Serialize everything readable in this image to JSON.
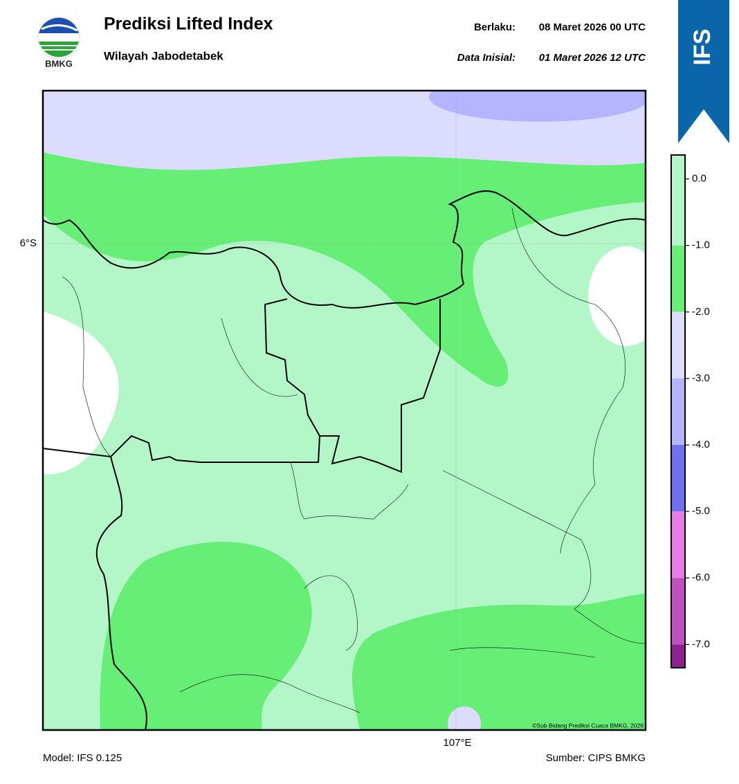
{
  "header": {
    "logo_text": "BMKG",
    "title": "Prediksi Lifted Index",
    "subtitle": "Wilayah Jabodetabek",
    "valid_label": "Berlaku:",
    "valid_time": "08 Maret 2026 00 UTC",
    "init_label": "Data Inisial:",
    "init_time": "01 Maret 2026 12 UTC",
    "model_badge": "IFS"
  },
  "map": {
    "lat_label": "6°S",
    "lon_label": "107°E",
    "copyright": "©Sub Bidang Prediksi Cuaca BMKG, 2026"
  },
  "legend": {
    "range": [
      -7.35,
      0.36
    ],
    "bands": [
      {
        "from": -1.0,
        "to": 0.36,
        "color": "#b3f7c8"
      },
      {
        "from": -2.0,
        "to": -1.0,
        "color": "#66ee77"
      },
      {
        "from": -3.0,
        "to": -2.0,
        "color": "#dcdcff"
      },
      {
        "from": -4.0,
        "to": -3.0,
        "color": "#b4b4ff"
      },
      {
        "from": -5.0,
        "to": -4.0,
        "color": "#7070f0"
      },
      {
        "from": -6.0,
        "to": -5.0,
        "color": "#e87de8"
      },
      {
        "from": -7.0,
        "to": -6.0,
        "color": "#c050c0"
      },
      {
        "from": -7.35,
        "to": -7.0,
        "color": "#902090"
      }
    ],
    "ticks": [
      {
        "value": 0,
        "label": "0.0"
      },
      {
        "value": -1,
        "label": "-1.0"
      },
      {
        "value": -2,
        "label": "-2.0"
      },
      {
        "value": -3,
        "label": "-3.0"
      },
      {
        "value": -4,
        "label": "-4.0"
      },
      {
        "value": -5,
        "label": "-5.0"
      },
      {
        "value": -6,
        "label": "-6.0"
      },
      {
        "value": -7,
        "label": "-7.0"
      }
    ]
  },
  "footer": {
    "model": "Model: IFS 0.125",
    "source": "Sumber: CIPS BMKG"
  }
}
